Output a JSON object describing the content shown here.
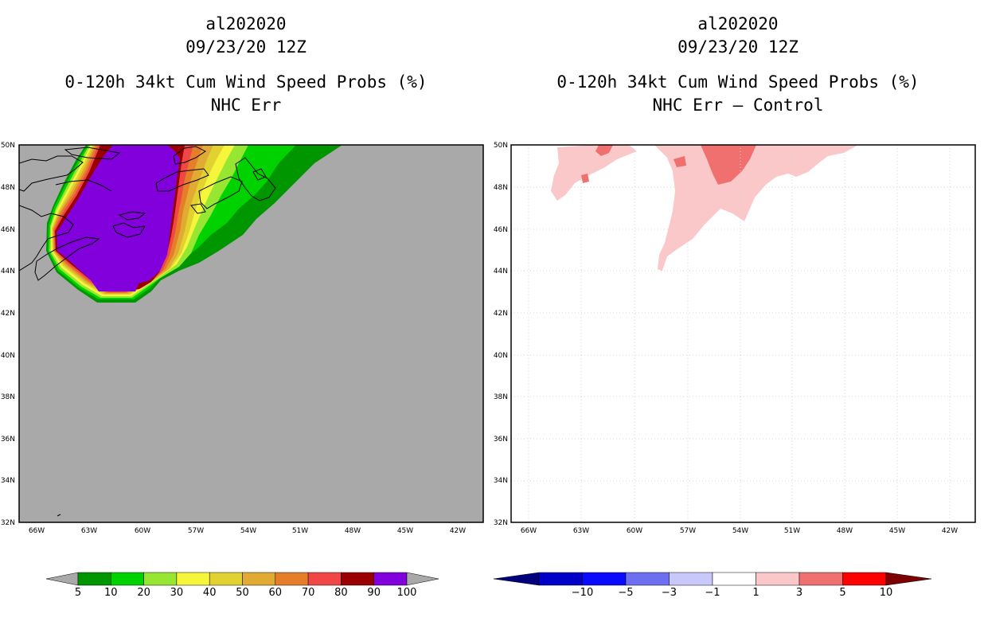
{
  "left_panel": {
    "title": {
      "storm_id": "al202020",
      "datetime": "09/23/20 12Z",
      "product": "0-120h 34kt Cum Wind Speed Probs (%)",
      "subtitle": "NHC Err"
    },
    "background_color": "#a9a9a9",
    "colorbar": {
      "labels": [
        "5",
        "10",
        "20",
        "30",
        "40",
        "50",
        "60",
        "70",
        "80",
        "90",
        "100"
      ],
      "colors": [
        "#009600",
        "#00d200",
        "#96e632",
        "#f5f53c",
        "#e1d232",
        "#e1aa32",
        "#e67d28",
        "#f04646",
        "#9b0000",
        "#8200dc"
      ],
      "extension_color": "#a9a9a9"
    }
  },
  "right_panel": {
    "title": {
      "storm_id": "al202020",
      "datetime": "09/23/20 12Z",
      "product": "0-120h 34kt Cum Wind Speed Probs (%)",
      "subtitle": "NHC Err – Control"
    },
    "background_color": "#ffffff",
    "colorbar": {
      "labels": [
        "−10",
        "−5",
        "−3",
        "−1",
        "1",
        "3",
        "5",
        "10"
      ],
      "colors": [
        "#0000c8",
        "#0a0aff",
        "#6e6ef0",
        "#c8c8fa",
        "#ffffff",
        "#fac8c8",
        "#f07070",
        "#ff0000"
      ],
      "low_extension_color": "#00007d",
      "high_extension_color": "#7d0000"
    }
  },
  "axes": {
    "lat_labels": [
      "32N",
      "34N",
      "36N",
      "38N",
      "40N",
      "42N",
      "44N",
      "46N",
      "48N",
      "50N"
    ],
    "lon_labels": [
      "66W",
      "63W",
      "60W",
      "57W",
      "54W",
      "51W",
      "48W",
      "45W",
      "42W"
    ]
  }
}
